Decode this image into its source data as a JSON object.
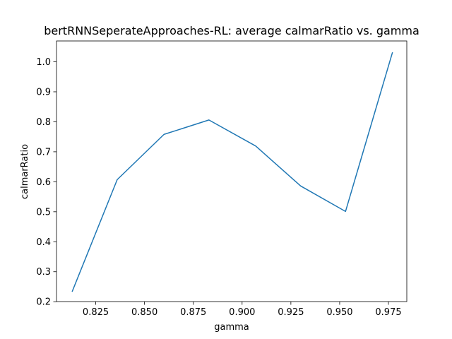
{
  "chart_data": {
    "type": "line",
    "title": "bertRNNSeperateApproaches-RL: average calmarRatio vs. gamma",
    "xlabel": "gamma",
    "ylabel": "calmarRatio",
    "xlim": [
      0.8049,
      0.9844
    ],
    "ylim": [
      0.2005,
      1.0695
    ],
    "xticks": [
      0.825,
      0.85,
      0.875,
      0.9,
      0.925,
      0.95,
      0.975
    ],
    "xtick_labels": [
      "0.825",
      "0.850",
      "0.875",
      "0.900",
      "0.925",
      "0.950",
      "0.975"
    ],
    "yticks": [
      0.2,
      0.3,
      0.4,
      0.5,
      0.6,
      0.7,
      0.8,
      0.9,
      1.0
    ],
    "ytick_labels": [
      "0.2",
      "0.3",
      "0.4",
      "0.5",
      "0.6",
      "0.7",
      "0.8",
      "0.9",
      "1.0"
    ],
    "grid": false,
    "series": [
      {
        "color": "#1f77b4",
        "x": [
          0.813,
          0.836,
          0.86,
          0.883,
          0.907,
          0.93,
          0.953,
          0.977
        ],
        "y": [
          0.235,
          0.607,
          0.758,
          0.806,
          0.719,
          0.586,
          0.501,
          1.03
        ]
      }
    ]
  }
}
